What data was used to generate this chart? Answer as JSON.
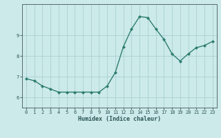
{
  "x": [
    0,
    1,
    2,
    3,
    4,
    5,
    6,
    7,
    8,
    9,
    10,
    11,
    12,
    13,
    14,
    15,
    16,
    17,
    18,
    19,
    20,
    21,
    22,
    23
  ],
  "y": [
    6.9,
    6.8,
    6.55,
    6.4,
    6.25,
    6.25,
    6.25,
    6.25,
    6.25,
    6.25,
    6.55,
    7.2,
    8.45,
    9.3,
    9.9,
    9.85,
    9.3,
    8.8,
    8.1,
    7.75,
    8.1,
    8.4,
    8.5,
    8.7
  ],
  "xlabel": "Humidex (Indice chaleur)",
  "ylim": [
    5.5,
    10.5
  ],
  "xlim": [
    -0.5,
    23.5
  ],
  "yticks": [
    6,
    7,
    8,
    9
  ],
  "xticks": [
    0,
    1,
    2,
    3,
    4,
    5,
    6,
    7,
    8,
    9,
    10,
    11,
    12,
    13,
    14,
    15,
    16,
    17,
    18,
    19,
    20,
    21,
    22,
    23
  ],
  "line_color": "#2d7d6e",
  "marker_color": "#2d7d6e",
  "bg_color": "#cceaea",
  "grid_color": "#aacfcf",
  "axis_color": "#556b6b",
  "tick_color": "#2d5555",
  "tick_fontsize": 5.0,
  "xlabel_fontsize": 6.0,
  "marker_size": 2.0,
  "line_width": 1.0
}
